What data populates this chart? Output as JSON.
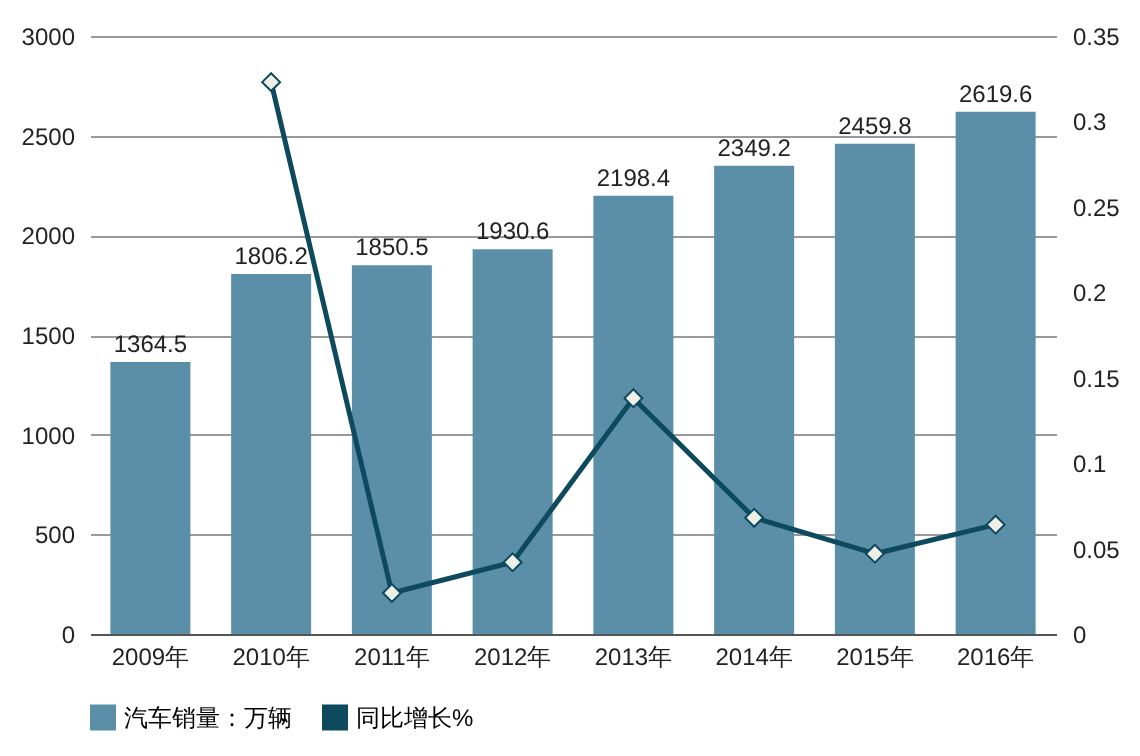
{
  "chart_data": {
    "type": "bar",
    "categories": [
      "2009年",
      "2010年",
      "2011年",
      "2012年",
      "2013年",
      "2014年",
      "2015年",
      "2016年"
    ],
    "series": [
      {
        "name": "汽车销量：万辆",
        "color": "#5b8fa8",
        "values": [
          1364.5,
          1806.2,
          1850.5,
          1930.6,
          2198.4,
          2349.2,
          2459.8,
          2619.6
        ]
      },
      {
        "name": "同比增长%",
        "type": "line",
        "axis": "y2",
        "color": "#0e4a5e",
        "values": [
          null,
          0.323,
          0.024,
          0.042,
          0.138,
          0.068,
          0.047,
          0.064
        ]
      }
    ],
    "value_labels": [
      "1364.5",
      "1806.2",
      "1850.5",
      "1930.6",
      "2198.4",
      "2349.2",
      "2459.8",
      "2619.6"
    ],
    "ylim": [
      0,
      3000
    ],
    "yticks": [
      0,
      500,
      1000,
      1500,
      2000,
      2500,
      3000
    ],
    "y2lim": [
      0,
      0.35
    ],
    "y2ticks": [
      0,
      0.05,
      0.1,
      0.15,
      0.2,
      0.25,
      0.3,
      0.35
    ],
    "grid": "y",
    "legend": "bottom",
    "marker": "diamond"
  }
}
